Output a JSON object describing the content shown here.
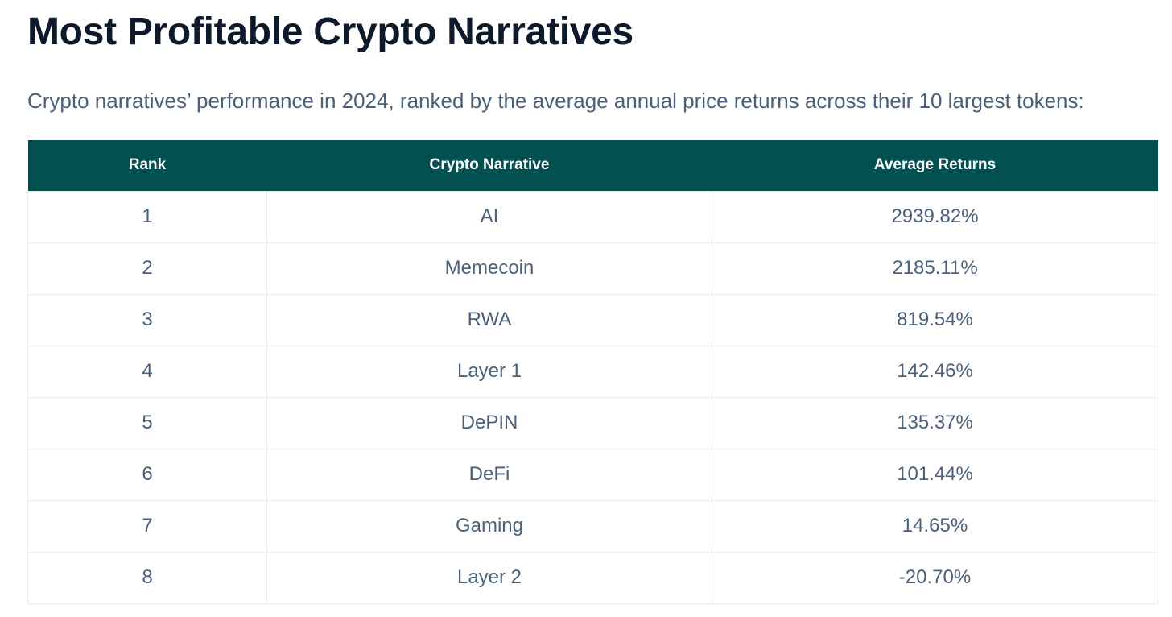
{
  "title": "Most Profitable Crypto Narratives",
  "subtitle": "Crypto narratives’ performance in 2024, ranked by the average annual price returns across their 10 largest tokens:",
  "colors": {
    "header_bg": "#02504f",
    "header_text": "#ffffff",
    "title_text": "#0e1a2b",
    "body_text": "#4b6079",
    "border": "#e6e9ee"
  },
  "table": {
    "headers": [
      "Rank",
      "Crypto Narrative",
      "Average Returns"
    ],
    "rows": [
      [
        "1",
        "AI",
        "2939.82%"
      ],
      [
        "2",
        "Memecoin",
        "2185.11%"
      ],
      [
        "3",
        "RWA",
        "819.54%"
      ],
      [
        "4",
        "Layer 1",
        "142.46%"
      ],
      [
        "5",
        "DePIN",
        "135.37%"
      ],
      [
        "6",
        "DeFi",
        "101.44%"
      ],
      [
        "7",
        "Gaming",
        "14.65%"
      ],
      [
        "8",
        "Layer 2",
        "-20.70%"
      ]
    ]
  }
}
